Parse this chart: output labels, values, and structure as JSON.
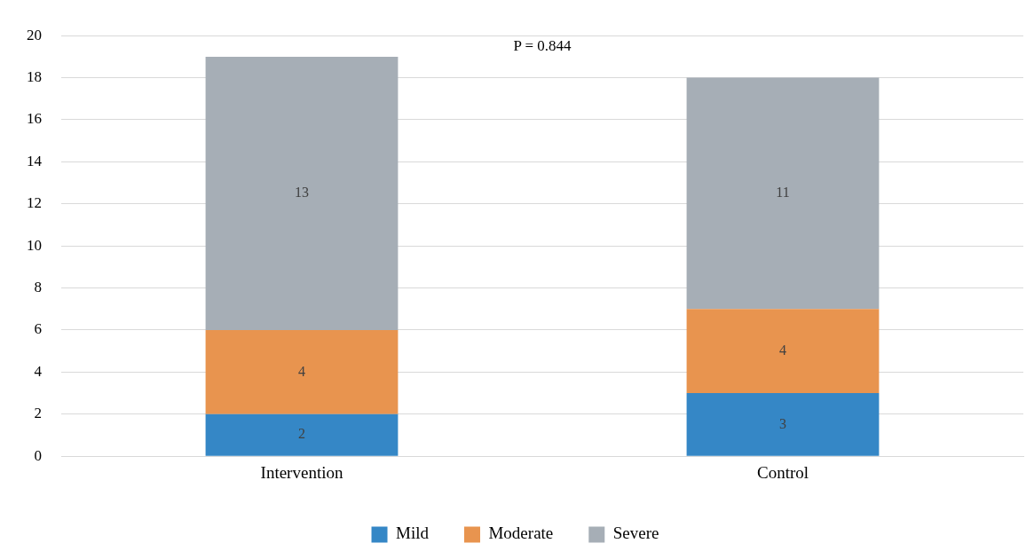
{
  "chart_data": {
    "type": "bar",
    "stacked": true,
    "categories": [
      "Intervention",
      "Control"
    ],
    "series": [
      {
        "name": "Mild",
        "color": "#3587c6",
        "values": [
          2,
          3
        ]
      },
      {
        "name": "Moderate",
        "color": "#e8944f",
        "values": [
          4,
          4
        ]
      },
      {
        "name": "Severe",
        "color": "#a6aeb6",
        "values": [
          13,
          11
        ]
      }
    ],
    "ylim": [
      0,
      20
    ],
    "yticks": [
      0,
      2,
      4,
      6,
      8,
      10,
      12,
      14,
      16,
      18,
      20
    ],
    "grid": "y",
    "legend": "bottom",
    "data_labels": true,
    "annotations": [
      "P = 0.844"
    ]
  }
}
